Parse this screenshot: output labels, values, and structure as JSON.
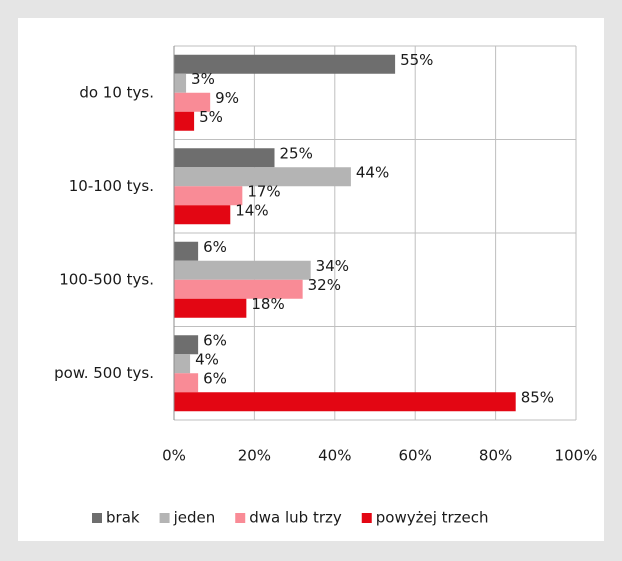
{
  "chart_data": {
    "type": "bar",
    "orientation": "horizontal",
    "categories": [
      "do 10 tys.",
      "10-100 tys.",
      "100-500 tys.",
      "pow. 500 tys."
    ],
    "series": [
      {
        "name": "brak",
        "color": "#6e6e6e",
        "values": [
          55,
          25,
          6,
          6
        ],
        "value_labels": [
          "55%",
          "25%",
          "6%",
          "6%"
        ]
      },
      {
        "name": "jeden",
        "color": "#b4b4b4",
        "values": [
          3,
          44,
          34,
          4
        ],
        "value_labels": [
          "3%",
          "44%",
          "34%",
          "4%"
        ]
      },
      {
        "name": "dwa lub trzy",
        "color": "#f98b96",
        "values": [
          9,
          17,
          32,
          6
        ],
        "value_labels": [
          "9%",
          "17%",
          "32%",
          "6%"
        ]
      },
      {
        "name": "powyżej trzech",
        "color": "#e30613",
        "values": [
          5,
          14,
          18,
          85
        ],
        "value_labels": [
          "5%",
          "14%",
          "18%",
          "85%"
        ]
      }
    ],
    "xlim": [
      0,
      100
    ],
    "xticks": [
      {
        "value": 0,
        "label": "0%"
      },
      {
        "value": 20,
        "label": "20%"
      },
      {
        "value": 40,
        "label": "40%"
      },
      {
        "value": 60,
        "label": "60%"
      },
      {
        "value": 80,
        "label": "80%"
      },
      {
        "value": 100,
        "label": "100%"
      }
    ],
    "grid": true,
    "legend": "bottom"
  }
}
